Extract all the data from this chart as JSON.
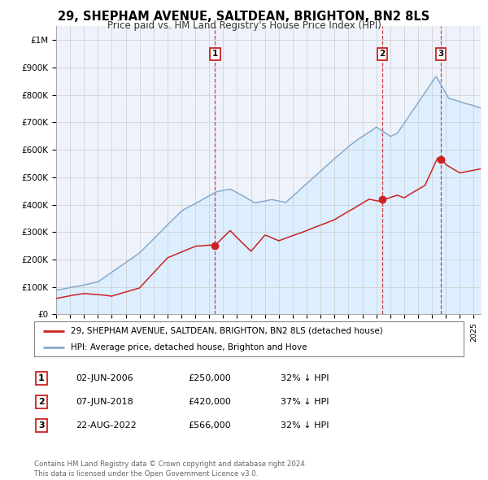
{
  "title": "29, SHEPHAM AVENUE, SALTDEAN, BRIGHTON, BN2 8LS",
  "subtitle": "Price paid vs. HM Land Registry's House Price Index (HPI)",
  "ylim": [
    0,
    1050000
  ],
  "yticks": [
    0,
    100000,
    200000,
    300000,
    400000,
    500000,
    600000,
    700000,
    800000,
    900000,
    1000000
  ],
  "ytick_labels": [
    "£0",
    "£100K",
    "£200K",
    "£300K",
    "£400K",
    "£500K",
    "£600K",
    "£700K",
    "£800K",
    "£900K",
    "£1M"
  ],
  "hpi_color": "#88aacc",
  "price_color": "#cc2222",
  "hpi_fill_color": "#ddeeff",
  "sale_markers": [
    {
      "date_idx": 2006.42,
      "price": 250000,
      "label": "1"
    },
    {
      "date_idx": 2018.44,
      "price": 420000,
      "label": "2"
    },
    {
      "date_idx": 2022.64,
      "price": 566000,
      "label": "3"
    }
  ],
  "vline_dates": [
    2006.42,
    2018.44,
    2022.64
  ],
  "legend_entries": [
    {
      "label": "29, SHEPHAM AVENUE, SALTDEAN, BRIGHTON, BN2 8LS (detached house)",
      "color": "#cc2222"
    },
    {
      "label": "HPI: Average price, detached house, Brighton and Hove",
      "color": "#88aacc"
    }
  ],
  "table_rows": [
    {
      "num": "1",
      "date": "02-JUN-2006",
      "price": "£250,000",
      "hpi": "32% ↓ HPI"
    },
    {
      "num": "2",
      "date": "07-JUN-2018",
      "price": "£420,000",
      "hpi": "37% ↓ HPI"
    },
    {
      "num": "3",
      "date": "22-AUG-2022",
      "price": "£566,000",
      "hpi": "32% ↓ HPI"
    }
  ],
  "footer": "Contains HM Land Registry data © Crown copyright and database right 2024.\nThis data is licensed under the Open Government Licence v3.0.",
  "background_color": "#ffffff",
  "plot_bg_color": "#eef3fb",
  "grid_color": "#cccccc"
}
